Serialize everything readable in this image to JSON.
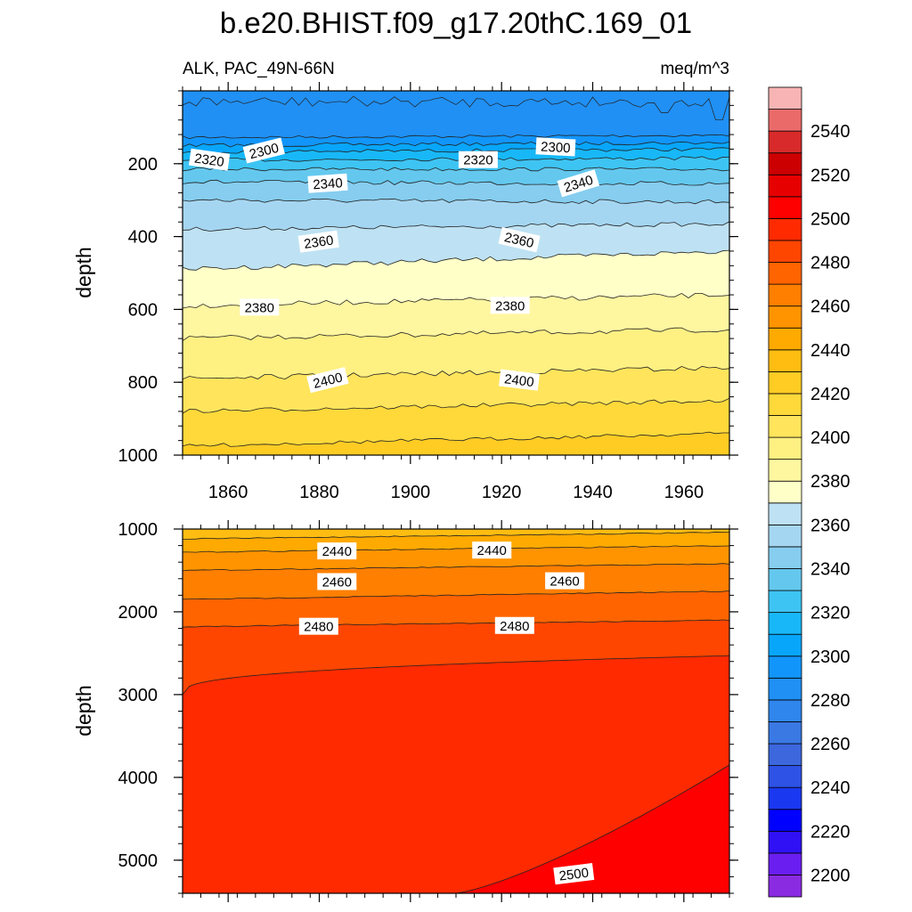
{
  "chart_data": {
    "type": "contour",
    "title": "b.e20.BHIST.f09_g17.20thC.169_01",
    "left_subtitle": "ALK, PAC_49N-66N",
    "right_subtitle": "meq/m^3",
    "xlabel": "",
    "ylabel": "depth",
    "x_ticks": [
      "1860",
      "1880",
      "1900",
      "1920",
      "1940",
      "1960"
    ],
    "x_tick_values": [
      1860,
      1880,
      1900,
      1920,
      1940,
      1960
    ],
    "xlim": [
      1850,
      1970
    ],
    "panels": [
      {
        "name": "upper",
        "ylim": [
          0,
          1000
        ],
        "y_ticks": [
          "200",
          "400",
          "600",
          "800",
          "1000"
        ],
        "y_tick_values": [
          200,
          400,
          600,
          800,
          1000
        ],
        "contour_labels": [
          {
            "text": "2300",
            "x": 1862,
            "y": 165,
            "angle": -14
          },
          {
            "text": "2300",
            "x": 1926,
            "y": 155,
            "angle": 3
          },
          {
            "text": "2320",
            "x": 1850,
            "y": 190,
            "angle": 8
          },
          {
            "text": "2320",
            "x": 1909,
            "y": 190,
            "angle": 0
          },
          {
            "text": "2340",
            "x": 1876,
            "y": 255,
            "angle": -4
          },
          {
            "text": "2340",
            "x": 1931,
            "y": 255,
            "angle": -17
          },
          {
            "text": "2360",
            "x": 1874,
            "y": 415,
            "angle": -8
          },
          {
            "text": "2360",
            "x": 1918,
            "y": 410,
            "angle": 13
          },
          {
            "text": "2380",
            "x": 1861,
            "y": 595,
            "angle": 0
          },
          {
            "text": "2380",
            "x": 1916,
            "y": 590,
            "angle": 0
          },
          {
            "text": "2400",
            "x": 1876,
            "y": 795,
            "angle": -14
          },
          {
            "text": "2400",
            "x": 1918,
            "y": 795,
            "angle": 7
          }
        ]
      },
      {
        "name": "lower",
        "ylim": [
          1000,
          5400
        ],
        "y_ticks": [
          "1000",
          "2000",
          "3000",
          "4000",
          "5000"
        ],
        "y_tick_values": [
          1000,
          2000,
          3000,
          4000,
          5000
        ],
        "contour_labels": [
          {
            "text": "2440",
            "x": 1878,
            "y": 1270,
            "angle": 0
          },
          {
            "text": "2440",
            "x": 1912,
            "y": 1260,
            "angle": 0
          },
          {
            "text": "2460",
            "x": 1878,
            "y": 1640,
            "angle": 0
          },
          {
            "text": "2460",
            "x": 1928,
            "y": 1630,
            "angle": 0
          },
          {
            "text": "2480",
            "x": 1874,
            "y": 2180,
            "angle": 0
          },
          {
            "text": "2480",
            "x": 1917,
            "y": 2170,
            "angle": 0
          },
          {
            "text": "2500",
            "x": 1930,
            "y": 5170,
            "angle": -7
          }
        ]
      }
    ],
    "colorbar": {
      "levels": [
        2200,
        2210,
        2220,
        2230,
        2240,
        2250,
        2260,
        2270,
        2280,
        2290,
        2300,
        2310,
        2320,
        2330,
        2340,
        2350,
        2360,
        2370,
        2380,
        2390,
        2400,
        2410,
        2420,
        2430,
        2440,
        2450,
        2460,
        2470,
        2480,
        2490,
        2500,
        2510,
        2520,
        2530,
        2540,
        2550
      ],
      "tick_labels": [
        "2200",
        "2220",
        "2240",
        "2260",
        "2280",
        "2300",
        "2320",
        "2340",
        "2360",
        "2380",
        "2400",
        "2420",
        "2440",
        "2460",
        "2480",
        "2500",
        "2520",
        "2540"
      ],
      "colors": [
        "#8a2be2",
        "#6a1ef0",
        "#3010f5",
        "#0000ff",
        "#1a38f0",
        "#2e52e6",
        "#3c67dd",
        "#3a78e4",
        "#2f86ed",
        "#2090f5",
        "#1295fa",
        "#08a6fb",
        "#18b8f8",
        "#3ec4f3",
        "#64c8ee",
        "#86cdef",
        "#a5d6f1",
        "#bee2f3",
        "#ffffc8",
        "#fff6a0",
        "#fff082",
        "#ffe45c",
        "#ffd93a",
        "#ffcc24",
        "#ffbd12",
        "#ffaa00",
        "#ff9400",
        "#ff7f00",
        "#ff6400",
        "#ff4600",
        "#ff2a00",
        "#ff0000",
        "#e60000",
        "#cc0000",
        "#d82a2a",
        "#ea6a6a",
        "#f8b4b4"
      ]
    }
  }
}
